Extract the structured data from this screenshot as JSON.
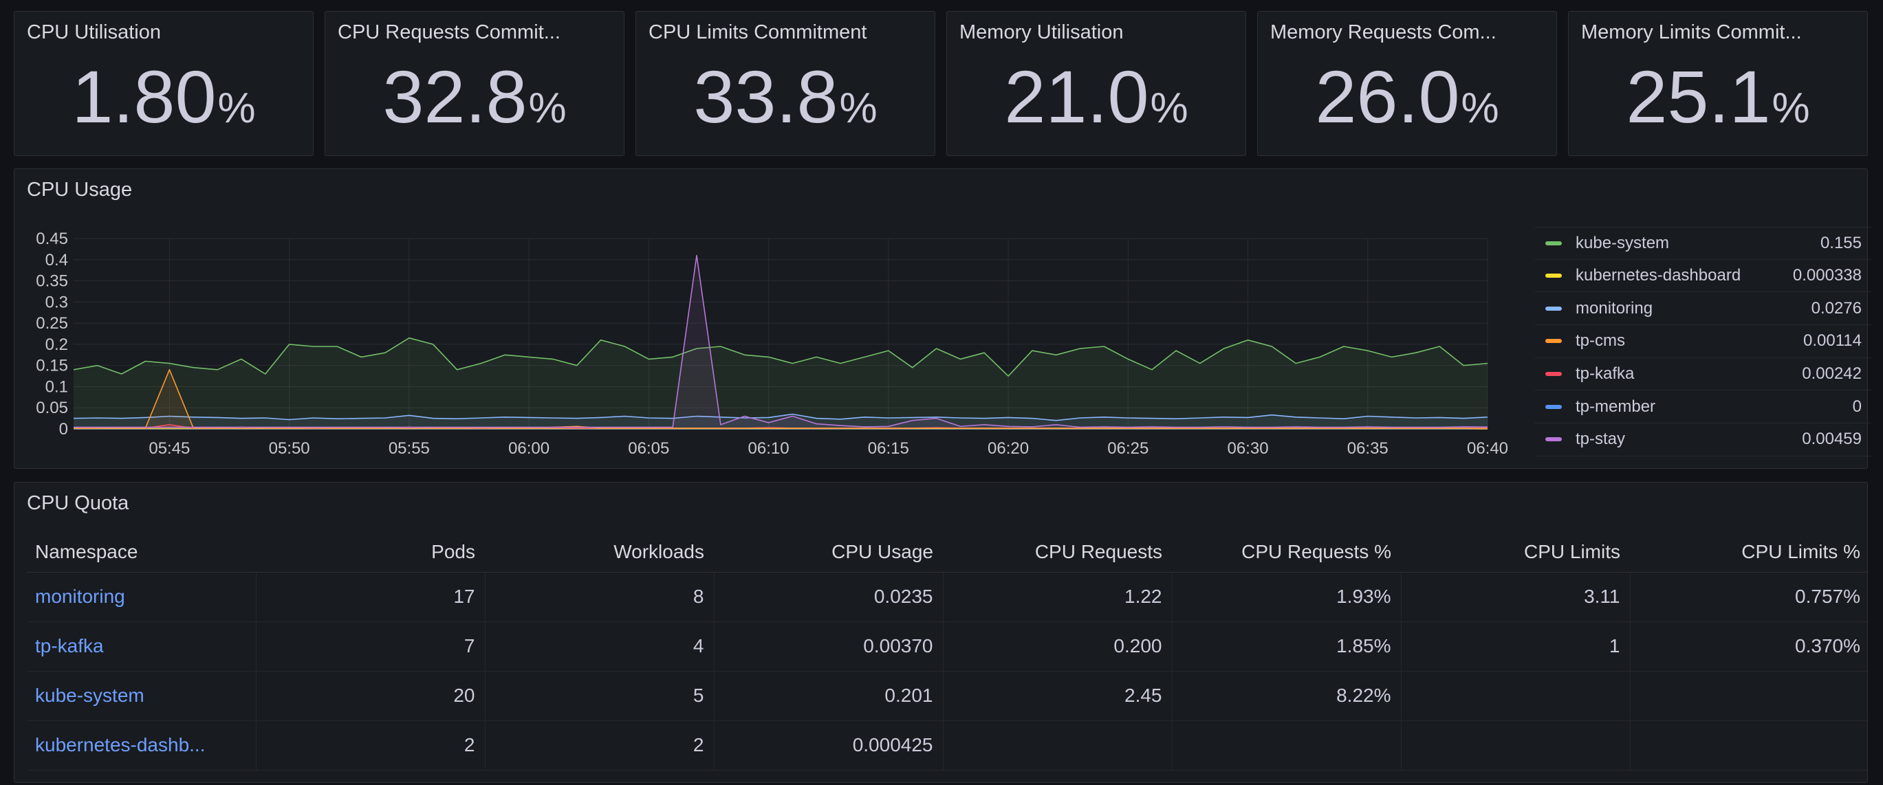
{
  "stats": [
    {
      "title": "CPU Utilisation",
      "value": "1.80",
      "unit": "%"
    },
    {
      "title": "CPU Requests Commit...",
      "value": "32.8",
      "unit": "%"
    },
    {
      "title": "CPU Limits Commitment",
      "value": "33.8",
      "unit": "%"
    },
    {
      "title": "Memory Utilisation",
      "value": "21.0",
      "unit": "%"
    },
    {
      "title": "Memory Requests Com...",
      "value": "26.0",
      "unit": "%"
    },
    {
      "title": "Memory Limits Commit...",
      "value": "25.1",
      "unit": "%"
    }
  ],
  "cpu_usage": {
    "title": "CPU Usage",
    "y_ticks": [
      "0.45",
      "0.4",
      "0.35",
      "0.3",
      "0.25",
      "0.2",
      "0.15",
      "0.1",
      "0.05",
      "0"
    ],
    "x_ticks": [
      "05:45",
      "05:50",
      "05:55",
      "06:00",
      "06:05",
      "06:10",
      "06:15",
      "06:20",
      "06:25",
      "06:30",
      "06:35",
      "06:40"
    ],
    "legend": [
      {
        "name": "kube-system",
        "value": "0.155",
        "color": "#73bf69"
      },
      {
        "name": "kubernetes-dashboard",
        "value": "0.000338",
        "color": "#fade2a"
      },
      {
        "name": "monitoring",
        "value": "0.0276",
        "color": "#8ab8ff"
      },
      {
        "name": "tp-cms",
        "value": "0.00114",
        "color": "#ff9830"
      },
      {
        "name": "tp-kafka",
        "value": "0.00242",
        "color": "#f2495c"
      },
      {
        "name": "tp-member",
        "value": "0",
        "color": "#5794f2"
      },
      {
        "name": "tp-stay",
        "value": "0.00459",
        "color": "#b877d9"
      }
    ]
  },
  "chart_data": {
    "type": "line",
    "title": "CPU Usage",
    "xlabel": "",
    "ylabel": "",
    "x_range": [
      "05:41",
      "06:40"
    ],
    "ylim": [
      0,
      0.45
    ],
    "grid": true,
    "legend_position": "right",
    "x": [
      "05:41",
      "05:42",
      "05:43",
      "05:44",
      "05:45",
      "05:46",
      "05:47",
      "05:48",
      "05:49",
      "05:50",
      "05:51",
      "05:52",
      "05:53",
      "05:54",
      "05:55",
      "05:56",
      "05:57",
      "05:58",
      "05:59",
      "06:00",
      "06:01",
      "06:02",
      "06:03",
      "06:04",
      "06:05",
      "06:06",
      "06:07",
      "06:08",
      "06:09",
      "06:10",
      "06:11",
      "06:12",
      "06:13",
      "06:14",
      "06:15",
      "06:16",
      "06:17",
      "06:18",
      "06:19",
      "06:20",
      "06:21",
      "06:22",
      "06:23",
      "06:24",
      "06:25",
      "06:26",
      "06:27",
      "06:28",
      "06:29",
      "06:30",
      "06:31",
      "06:32",
      "06:33",
      "06:34",
      "06:35",
      "06:36",
      "06:37",
      "06:38",
      "06:39",
      "06:40"
    ],
    "series": [
      {
        "name": "kube-system",
        "values": [
          0.14,
          0.15,
          0.13,
          0.16,
          0.155,
          0.145,
          0.14,
          0.165,
          0.13,
          0.2,
          0.195,
          0.195,
          0.17,
          0.18,
          0.215,
          0.2,
          0.14,
          0.155,
          0.175,
          0.17,
          0.165,
          0.15,
          0.21,
          0.195,
          0.165,
          0.17,
          0.19,
          0.195,
          0.175,
          0.17,
          0.155,
          0.17,
          0.155,
          0.17,
          0.185,
          0.145,
          0.19,
          0.165,
          0.18,
          0.125,
          0.185,
          0.175,
          0.19,
          0.195,
          0.165,
          0.14,
          0.185,
          0.155,
          0.19,
          0.21,
          0.195,
          0.155,
          0.17,
          0.195,
          0.185,
          0.17,
          0.18,
          0.195,
          0.15,
          0.155
        ]
      },
      {
        "name": "kubernetes-dashboard",
        "values": [
          0.001,
          0.001,
          0.001,
          0.001,
          0.001,
          0.001,
          0.001,
          0.001,
          0.001,
          0.001,
          0.001,
          0.001,
          0.001,
          0.001,
          0.001,
          0.001,
          0.001,
          0.001,
          0.001,
          0.001,
          0.001,
          0.001,
          0.001,
          0.001,
          0.001,
          0.001,
          0.001,
          0.001,
          0.001,
          0.001,
          0.001,
          0.001,
          0.001,
          0.001,
          0.001,
          0.001,
          0.001,
          0.001,
          0.001,
          0.001,
          0.001,
          0.001,
          0.001,
          0.001,
          0.001,
          0.001,
          0.001,
          0.001,
          0.001,
          0.001,
          0.001,
          0.001,
          0.001,
          0.001,
          0.001,
          0.001,
          0.001,
          0.001,
          0.001,
          0.0003
        ]
      },
      {
        "name": "monitoring",
        "values": [
          0.025,
          0.026,
          0.025,
          0.027,
          0.03,
          0.028,
          0.027,
          0.025,
          0.026,
          0.022,
          0.026,
          0.024,
          0.025,
          0.026,
          0.032,
          0.025,
          0.024,
          0.026,
          0.028,
          0.027,
          0.026,
          0.025,
          0.027,
          0.03,
          0.026,
          0.025,
          0.03,
          0.028,
          0.026,
          0.027,
          0.035,
          0.025,
          0.023,
          0.028,
          0.026,
          0.027,
          0.028,
          0.026,
          0.025,
          0.027,
          0.025,
          0.02,
          0.026,
          0.028,
          0.026,
          0.025,
          0.024,
          0.026,
          0.028,
          0.027,
          0.033,
          0.028,
          0.026,
          0.024,
          0.03,
          0.028,
          0.026,
          0.027,
          0.025,
          0.028
        ]
      },
      {
        "name": "tp-cms",
        "values": [
          0.002,
          0.002,
          0.002,
          0.002,
          0.14,
          0.002,
          0.002,
          0.004,
          0.002,
          0.002,
          0.003,
          0.002,
          0.002,
          0.002,
          0.004,
          0.002,
          0.002,
          0.003,
          0.002,
          0.002,
          0.004,
          0.006,
          0.002,
          0.002,
          0.002,
          0.002,
          0.002,
          0.002,
          0.002,
          0.002,
          0.002,
          0.002,
          0.002,
          0.002,
          0.002,
          0.002,
          0.002,
          0.002,
          0.002,
          0.002,
          0.002,
          0.002,
          0.002,
          0.002,
          0.002,
          0.002,
          0.002,
          0.002,
          0.002,
          0.002,
          0.002,
          0.002,
          0.002,
          0.002,
          0.002,
          0.002,
          0.002,
          0.002,
          0.002,
          0.001
        ]
      },
      {
        "name": "tp-kafka",
        "values": [
          0.002,
          0.002,
          0.003,
          0.002,
          0.01,
          0.002,
          0.002,
          0.003,
          0.002,
          0.002,
          0.002,
          0.002,
          0.002,
          0.002,
          0.003,
          0.002,
          0.002,
          0.002,
          0.002,
          0.002,
          0.003,
          0.002,
          0.002,
          0.002,
          0.002,
          0.002,
          0.002,
          0.002,
          0.002,
          0.003,
          0.002,
          0.002,
          0.002,
          0.002,
          0.002,
          0.002,
          0.003,
          0.002,
          0.002,
          0.002,
          0.002,
          0.002,
          0.002,
          0.002,
          0.002,
          0.002,
          0.002,
          0.002,
          0.002,
          0.002,
          0.002,
          0.002,
          0.002,
          0.002,
          0.002,
          0.002,
          0.002,
          0.002,
          0.002,
          0.002
        ]
      },
      {
        "name": "tp-member",
        "values": [
          0,
          0,
          0,
          0,
          0,
          0,
          0,
          0,
          0,
          0,
          0,
          0,
          0,
          0,
          0,
          0,
          0,
          0,
          0,
          0,
          0,
          0,
          0,
          0,
          0,
          0,
          0,
          0,
          0,
          0,
          0,
          0,
          0,
          0,
          0,
          0,
          0,
          0,
          0,
          0,
          0,
          0,
          0,
          0,
          0,
          0,
          0,
          0,
          0,
          0,
          0,
          0,
          0,
          0,
          0,
          0,
          0,
          0,
          0,
          0
        ]
      },
      {
        "name": "tp-stay",
        "values": [
          0.004,
          0.004,
          0.004,
          0.004,
          0.004,
          0.004,
          0.004,
          0.004,
          0.004,
          0.004,
          0.004,
          0.004,
          0.004,
          0.004,
          0.004,
          0.004,
          0.004,
          0.004,
          0.004,
          0.004,
          0.004,
          0.004,
          0.004,
          0.004,
          0.004,
          0.004,
          0.41,
          0.01,
          0.03,
          0.015,
          0.03,
          0.012,
          0.008,
          0.005,
          0.006,
          0.02,
          0.025,
          0.006,
          0.01,
          0.006,
          0.005,
          0.01,
          0.004,
          0.005,
          0.004,
          0.005,
          0.004,
          0.004,
          0.005,
          0.004,
          0.004,
          0.005,
          0.004,
          0.004,
          0.005,
          0.004,
          0.004,
          0.004,
          0.005,
          0.0046
        ]
      }
    ]
  },
  "cpu_quota": {
    "title": "CPU Quota",
    "columns": [
      "Namespace",
      "Pods",
      "Workloads",
      "CPU Usage",
      "CPU Requests",
      "CPU Requests %",
      "CPU Limits",
      "CPU Limits %"
    ],
    "rows": [
      [
        "monitoring",
        "17",
        "8",
        "0.0235",
        "1.22",
        "1.93%",
        "3.11",
        "0.757%"
      ],
      [
        "tp-kafka",
        "7",
        "4",
        "0.00370",
        "0.200",
        "1.85%",
        "1",
        "0.370%"
      ],
      [
        "kube-system",
        "20",
        "5",
        "0.201",
        "2.45",
        "8.22%",
        "",
        ""
      ],
      [
        "kubernetes-dashb...",
        "2",
        "2",
        "0.000425",
        "",
        "",
        "",
        ""
      ]
    ]
  }
}
